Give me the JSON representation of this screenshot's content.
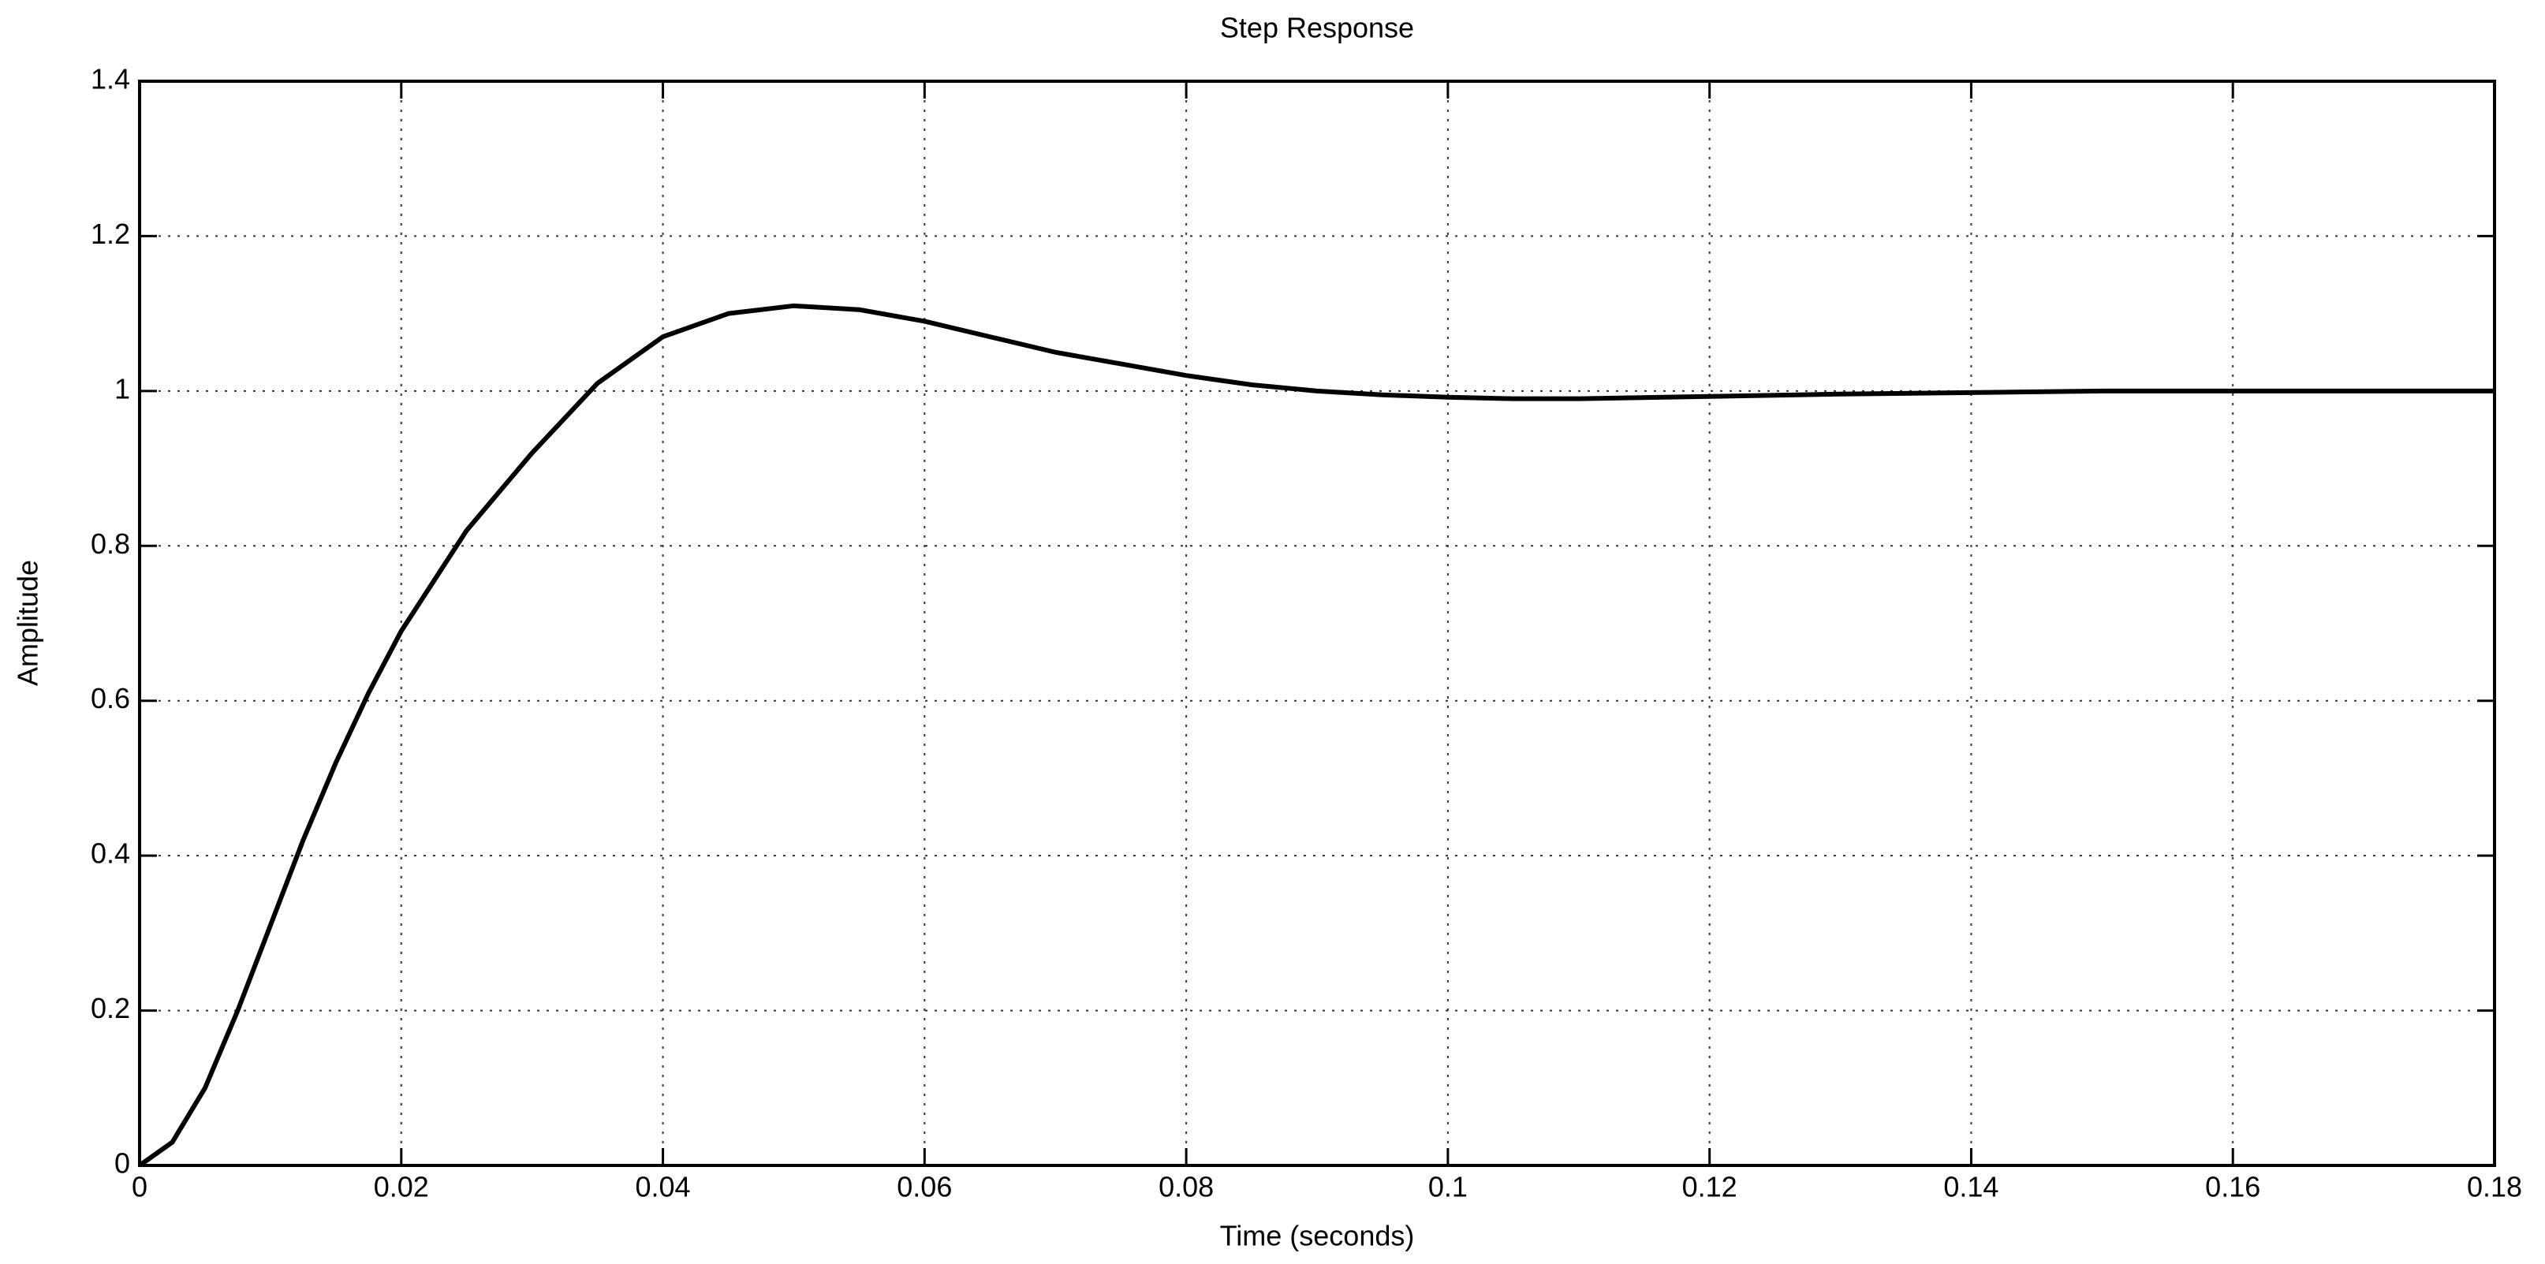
{
  "chart_data": {
    "type": "line",
    "title": "Step Response",
    "x_label": "Time (seconds)",
    "y_label": "Amplitude",
    "x": [
      0,
      0.0025,
      0.005,
      0.0075,
      0.01,
      0.0125,
      0.015,
      0.0175,
      0.02,
      0.025,
      0.03,
      0.035,
      0.04,
      0.045,
      0.05,
      0.055,
      0.06,
      0.065,
      0.07,
      0.075,
      0.08,
      0.085,
      0.09,
      0.095,
      0.1,
      0.105,
      0.11,
      0.12,
      0.13,
      0.14,
      0.15,
      0.16,
      0.17,
      0.18
    ],
    "series": [
      {
        "name": "Step response",
        "color": "#000000",
        "values": [
          0,
          0.03,
          0.1,
          0.2,
          0.31,
          0.42,
          0.52,
          0.61,
          0.69,
          0.82,
          0.92,
          1.01,
          1.07,
          1.1,
          1.11,
          1.105,
          1.09,
          1.07,
          1.05,
          1.035,
          1.02,
          1.008,
          1.0,
          0.995,
          0.992,
          0.99,
          0.99,
          0.993,
          0.996,
          0.998,
          1.0,
          1.0,
          1.0,
          1.0
        ]
      }
    ],
    "xlim": [
      0,
      0.18
    ],
    "ylim": [
      0,
      1.4
    ],
    "xticks": [
      0,
      0.02,
      0.04,
      0.06,
      0.08,
      0.1,
      0.12,
      0.14,
      0.16,
      0.18
    ],
    "yticks": [
      0,
      0.2,
      0.4,
      0.6,
      0.8,
      1,
      1.2,
      1.4
    ],
    "grid": true
  }
}
